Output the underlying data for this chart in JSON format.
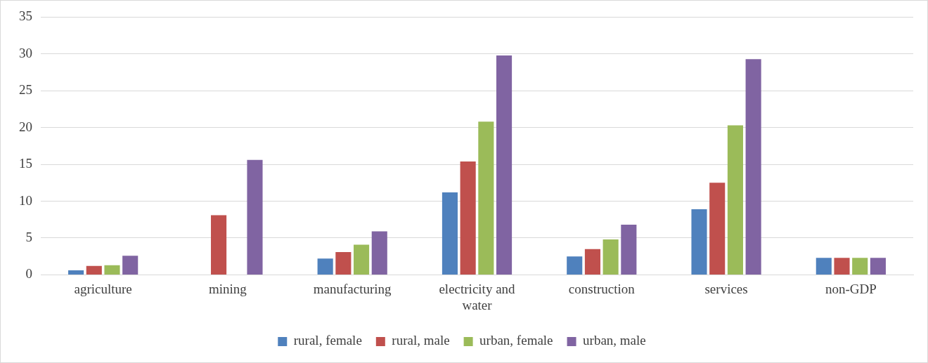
{
  "chart_data": {
    "type": "bar",
    "categories": [
      "agriculture",
      "mining",
      "manufacturing",
      "electricity and water",
      "construction",
      "services",
      "non-GDP"
    ],
    "series": [
      {
        "name": "rural, female",
        "color": "#4f81bd",
        "values": [
          0.6,
          null,
          2.2,
          11.2,
          2.5,
          8.9,
          2.3
        ]
      },
      {
        "name": "rural, male",
        "color": "#c0504d",
        "values": [
          1.2,
          8.1,
          3.1,
          15.4,
          3.5,
          12.5,
          2.3
        ]
      },
      {
        "name": "urban, female",
        "color": "#9bbb59",
        "values": [
          1.3,
          null,
          4.1,
          20.8,
          4.8,
          20.3,
          2.3
        ]
      },
      {
        "name": "urban, male",
        "color": "#8064a2",
        "values": [
          2.6,
          15.6,
          5.9,
          29.8,
          6.8,
          29.3,
          2.3
        ]
      }
    ],
    "ylim": [
      0,
      35
    ],
    "yticks": [
      0,
      5,
      10,
      15,
      20,
      25,
      30,
      35
    ],
    "grid": "y",
    "legend": "bottom"
  }
}
